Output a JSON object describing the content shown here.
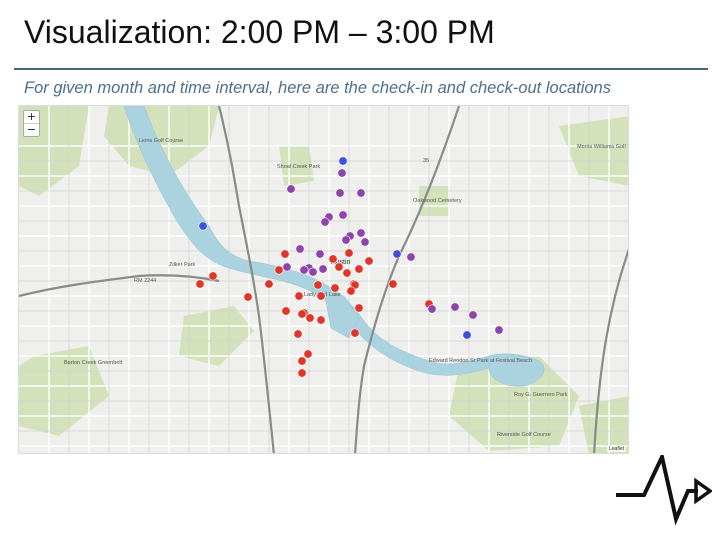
{
  "slide": {
    "title": "Visualization: 2:00 PM – 3:00 PM",
    "subtitle": "For given month and time interval, here are the check-in and check-out locations"
  },
  "map": {
    "zoom_in_label": "+",
    "zoom_out_label": "−",
    "attribution": "Leaflet",
    "labels": [
      {
        "name": "label-golf-course-top",
        "text": "Lions Golf Course"
      },
      {
        "name": "label-shoal-creek",
        "text": "Shoal Creek Park"
      },
      {
        "name": "label-oakwood",
        "text": "Oakwood Cemetery"
      },
      {
        "name": "label-morris-williams",
        "text": "Morris Williams Golf Course"
      },
      {
        "name": "label-zilker",
        "text": "Zilker Park"
      },
      {
        "name": "label-lady-bird",
        "text": "Lady Bird Lake"
      },
      {
        "name": "label-edward-rendon",
        "text": "Edward Rendon Sr Park at Festival Beach"
      },
      {
        "name": "label-barton-creek",
        "text": "Barton Creek Greenbelt"
      },
      {
        "name": "label-roy-guerrero",
        "text": "Roy G. Guerrero Park"
      },
      {
        "name": "label-riverside",
        "text": "Riverside Golf Course"
      },
      {
        "name": "label-austin",
        "text": "Austin"
      },
      {
        "name": "label-rm2244",
        "text": "RM 2244"
      },
      {
        "name": "label-i35",
        "text": "35"
      }
    ],
    "colors": {
      "red": "#e0352b",
      "purple": "#8e44ad",
      "blue": "#3f4fd8",
      "water": "#aad3df",
      "park": "#cfe0b4"
    }
  }
}
